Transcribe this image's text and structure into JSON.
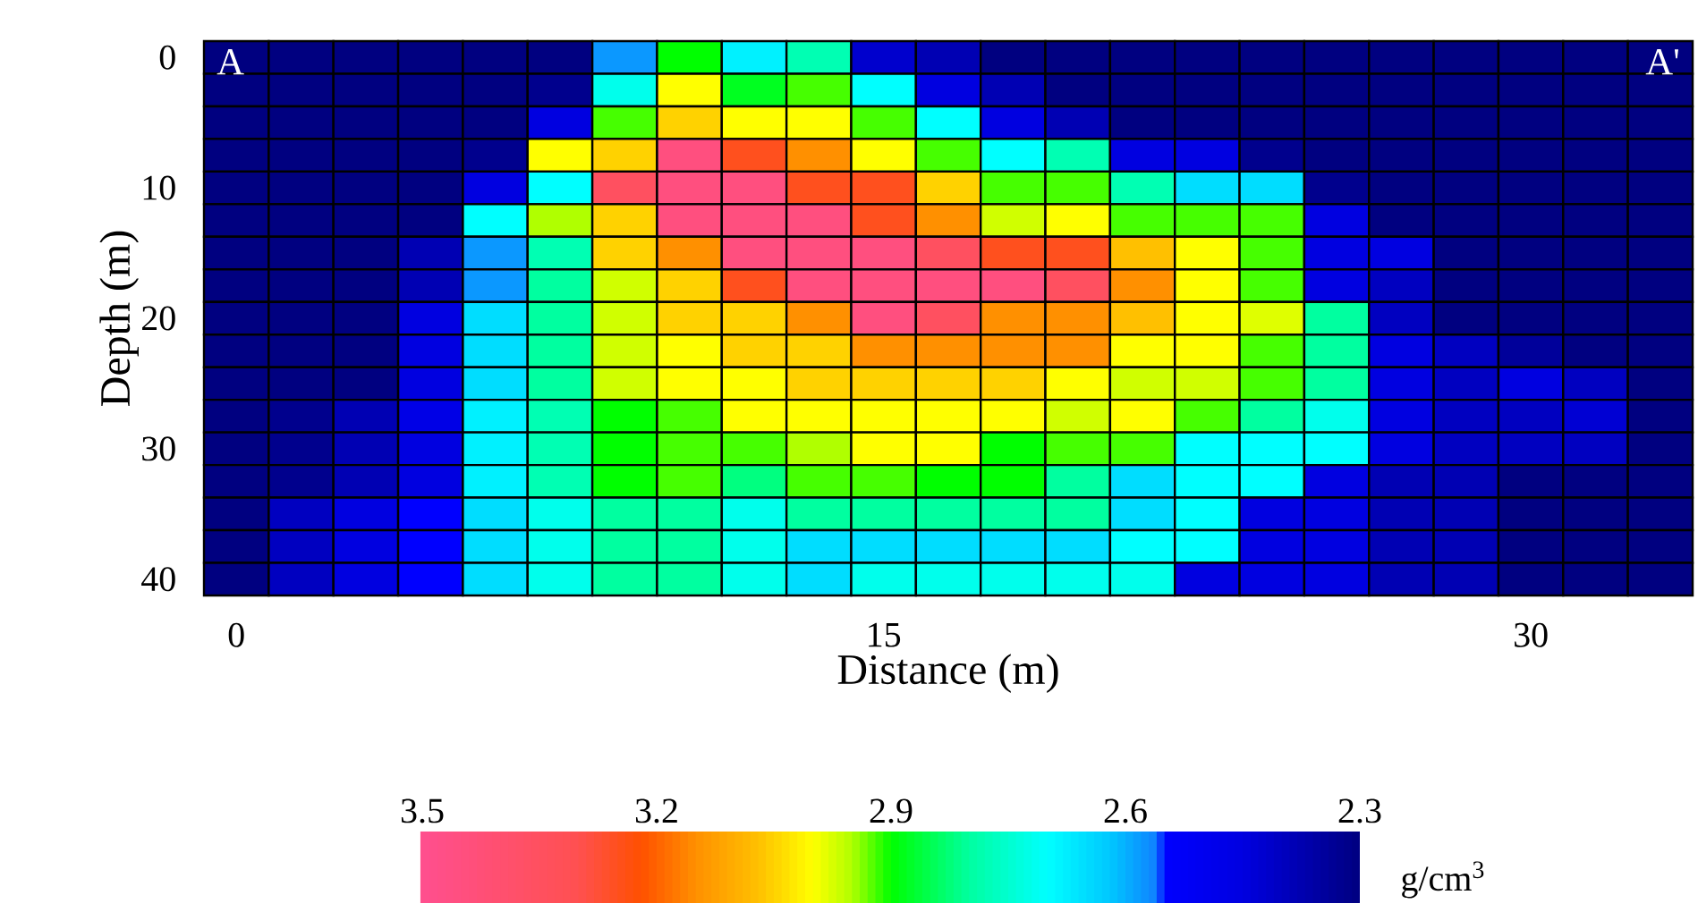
{
  "chart_data": {
    "type": "heatmap",
    "xlabel": "Distance (m)",
    "ylabel": "Depth (m)",
    "clabel": "g/cm$^{3}$",
    "annotations": [
      "A",
      "A'"
    ],
    "categories": [
      "0",
      null,
      null,
      null,
      null,
      null,
      null,
      null,
      null,
      null,
      "15",
      null,
      null,
      null,
      null,
      null,
      null,
      null,
      null,
      null,
      "30",
      null,
      null
    ],
    "y_categories": [
      "0",
      null,
      null,
      null,
      "10",
      null,
      null,
      null,
      "20",
      null,
      null,
      null,
      "30",
      null,
      null,
      null,
      "40"
    ],
    "clim": [
      3.5,
      2.3
    ],
    "cticks": [
      3.5,
      3.2,
      2.9,
      2.6,
      2.3
    ],
    "cells": [
      [
        2.3,
        2.3,
        2.3,
        2.3,
        2.3,
        2.3,
        2.58,
        2.9,
        2.68,
        2.78,
        2.42,
        2.38,
        2.3,
        2.3,
        2.3,
        2.3,
        2.3,
        2.3,
        2.3,
        2.3,
        2.3,
        2.3,
        2.3
      ],
      [
        2.3,
        2.3,
        2.3,
        2.3,
        2.3,
        2.32,
        2.72,
        3.0,
        2.88,
        2.92,
        2.7,
        2.45,
        2.38,
        2.3,
        2.3,
        2.3,
        2.3,
        2.3,
        2.3,
        2.3,
        2.3,
        2.3,
        2.3
      ],
      [
        2.3,
        2.3,
        2.3,
        2.3,
        2.3,
        2.45,
        2.92,
        3.05,
        3.0,
        3.0,
        2.92,
        2.7,
        2.45,
        2.38,
        2.3,
        2.3,
        2.3,
        2.3,
        2.3,
        2.3,
        2.3,
        2.3,
        2.3
      ],
      [
        2.3,
        2.3,
        2.3,
        2.3,
        2.32,
        3.0,
        3.05,
        3.45,
        3.25,
        3.15,
        3.0,
        2.92,
        2.7,
        2.78,
        2.45,
        2.45,
        2.32,
        2.3,
        2.3,
        2.3,
        2.3,
        2.3,
        2.3
      ],
      [
        2.3,
        2.3,
        2.3,
        2.3,
        2.45,
        2.7,
        3.35,
        3.45,
        3.45,
        3.25,
        3.25,
        3.05,
        2.92,
        2.92,
        2.78,
        2.65,
        2.65,
        2.32,
        2.3,
        2.3,
        2.3,
        2.3,
        2.3
      ],
      [
        2.3,
        2.3,
        2.3,
        2.3,
        2.7,
        2.95,
        3.05,
        3.45,
        3.45,
        3.45,
        3.25,
        3.15,
        2.97,
        3.0,
        2.92,
        2.92,
        2.92,
        2.45,
        2.3,
        2.3,
        2.3,
        2.3,
        2.3
      ],
      [
        2.3,
        2.3,
        2.3,
        2.38,
        2.58,
        2.78,
        3.05,
        3.15,
        3.45,
        3.45,
        3.45,
        3.35,
        3.25,
        3.25,
        3.07,
        3.0,
        2.92,
        2.45,
        2.45,
        2.3,
        2.3,
        2.3,
        2.3
      ],
      [
        2.3,
        2.3,
        2.3,
        2.38,
        2.58,
        2.8,
        2.97,
        3.05,
        3.25,
        3.45,
        3.45,
        3.45,
        3.45,
        3.35,
        3.15,
        3.0,
        2.92,
        2.45,
        2.4,
        2.3,
        2.3,
        2.3,
        2.3
      ],
      [
        2.3,
        2.3,
        2.3,
        2.45,
        2.65,
        2.8,
        2.97,
        3.05,
        3.05,
        3.15,
        3.45,
        3.35,
        3.15,
        3.15,
        3.07,
        3.0,
        2.98,
        2.8,
        2.4,
        2.3,
        2.3,
        2.3,
        2.3
      ],
      [
        2.3,
        2.3,
        2.3,
        2.45,
        2.65,
        2.8,
        2.97,
        3.0,
        3.05,
        3.05,
        3.15,
        3.15,
        3.15,
        3.15,
        3.0,
        3.0,
        2.92,
        2.8,
        2.45,
        2.4,
        2.34,
        2.3,
        2.3
      ],
      [
        2.3,
        2.3,
        2.3,
        2.45,
        2.65,
        2.8,
        2.97,
        3.0,
        3.0,
        3.05,
        3.05,
        3.05,
        3.05,
        3.0,
        2.97,
        2.97,
        2.92,
        2.8,
        2.45,
        2.4,
        2.45,
        2.4,
        2.3
      ],
      [
        2.3,
        2.32,
        2.38,
        2.47,
        2.68,
        2.78,
        2.9,
        2.92,
        3.0,
        3.0,
        3.0,
        3.0,
        3.0,
        2.97,
        3.0,
        2.92,
        2.8,
        2.72,
        2.45,
        2.4,
        2.4,
        2.43,
        2.3
      ],
      [
        2.3,
        2.32,
        2.38,
        2.45,
        2.68,
        2.78,
        2.9,
        2.92,
        2.92,
        2.95,
        3.0,
        3.0,
        2.9,
        2.92,
        2.92,
        2.7,
        2.7,
        2.7,
        2.45,
        2.4,
        2.4,
        2.4,
        2.3
      ],
      [
        2.3,
        2.32,
        2.38,
        2.45,
        2.68,
        2.78,
        2.9,
        2.92,
        2.82,
        2.92,
        2.92,
        2.9,
        2.9,
        2.8,
        2.65,
        2.7,
        2.7,
        2.45,
        2.38,
        2.38,
        2.3,
        2.3,
        2.3
      ],
      [
        2.3,
        2.4,
        2.45,
        2.55,
        2.65,
        2.72,
        2.8,
        2.8,
        2.72,
        2.8,
        2.8,
        2.8,
        2.8,
        2.8,
        2.65,
        2.7,
        2.45,
        2.45,
        2.38,
        2.38,
        2.3,
        2.3,
        2.3
      ],
      [
        2.3,
        2.4,
        2.45,
        2.55,
        2.65,
        2.72,
        2.8,
        2.8,
        2.72,
        2.65,
        2.65,
        2.65,
        2.65,
        2.65,
        2.7,
        2.7,
        2.45,
        2.45,
        2.38,
        2.38,
        2.3,
        2.3,
        2.3
      ],
      [
        2.3,
        2.4,
        2.45,
        2.55,
        2.65,
        2.72,
        2.8,
        2.8,
        2.72,
        2.65,
        2.72,
        2.72,
        2.72,
        2.72,
        2.72,
        2.45,
        2.45,
        2.45,
        2.38,
        2.38,
        2.3,
        2.3,
        2.3
      ]
    ]
  }
}
